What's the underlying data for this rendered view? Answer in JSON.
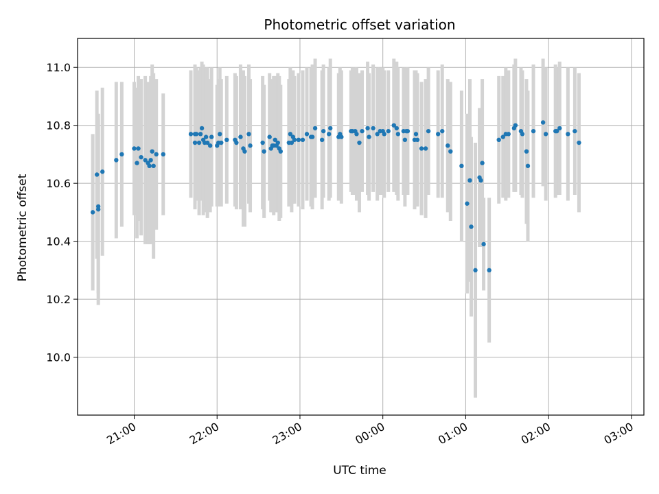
{
  "chart_data": {
    "type": "scatter",
    "title": "Photometric offset variation",
    "xlabel": "UTC time",
    "ylabel": "Photometric offset",
    "x_is_time": true,
    "xlim": [
      "20:19",
      "03:09"
    ],
    "ylim": [
      9.8,
      11.1
    ],
    "x_ticks": [
      "21:00",
      "22:00",
      "23:00",
      "00:00",
      "01:00",
      "02:00",
      "03:00"
    ],
    "y_ticks": [
      "10.0",
      "10.2",
      "10.4",
      "10.6",
      "10.8",
      "11.0"
    ],
    "grid": true,
    "marker_color": "#1f77b4",
    "errorbar_color": "#d3d3d3",
    "series": [
      {
        "x": [
          "20:30",
          "20:33",
          "20:34",
          "20:34",
          "20:37",
          "20:47",
          "20:51",
          "21:00",
          "21:02",
          "21:03",
          "21:05",
          "21:08",
          "21:10",
          "21:11",
          "21:12",
          "21:13",
          "21:14",
          "21:16",
          "21:21",
          "21:41",
          "21:44",
          "21:44",
          "21:45",
          "21:47",
          "21:48",
          "21:49",
          "21:50",
          "21:51",
          "21:52",
          "21:53",
          "21:55",
          "21:56",
          "22:00",
          "22:01",
          "22:02",
          "22:03",
          "22:07",
          "22:13",
          "22:14",
          "22:17",
          "22:19",
          "22:20",
          "22:23",
          "22:24",
          "22:33",
          "22:34",
          "22:38",
          "22:39",
          "22:40",
          "22:41",
          "22:42",
          "22:43",
          "22:44",
          "22:45",
          "22:46",
          "22:52",
          "22:53",
          "22:54",
          "22:55",
          "22:56",
          "22:59",
          "23:02",
          "23:05",
          "23:08",
          "23:09",
          "23:11",
          "23:16",
          "23:17",
          "23:21",
          "23:22",
          "23:28",
          "23:29",
          "23:30",
          "23:37",
          "23:38",
          "23:40",
          "23:41",
          "23:43",
          "23:45",
          "23:49",
          "23:50",
          "23:53",
          "23:56",
          "23:58",
          "00:00",
          "00:01",
          "00:04",
          "00:08",
          "00:10",
          "00:11",
          "00:15",
          "00:16",
          "00:17",
          "00:18",
          "00:23",
          "00:24",
          "00:25",
          "00:28",
          "00:31",
          "00:33",
          "00:40",
          "00:43",
          "00:47",
          "00:49",
          "00:57",
          "01:01",
          "01:03",
          "01:04",
          "01:07",
          "01:10",
          "01:11",
          "01:12",
          "01:13",
          "01:17",
          "01:24",
          "01:27",
          "01:29",
          "01:31",
          "01:35",
          "01:36",
          "01:40",
          "01:41",
          "01:44",
          "01:45",
          "01:49",
          "01:56",
          "01:58",
          "02:05",
          "02:06",
          "02:08",
          "02:14",
          "02:19",
          "02:22"
        ],
        "y": [
          10.5,
          10.63,
          10.52,
          10.51,
          10.64,
          10.68,
          10.7,
          10.72,
          10.67,
          10.72,
          10.69,
          10.68,
          10.67,
          10.66,
          10.68,
          10.71,
          10.66,
          10.7,
          10.7,
          10.77,
          10.74,
          10.77,
          10.77,
          10.74,
          10.77,
          10.79,
          10.75,
          10.74,
          10.76,
          10.74,
          10.73,
          10.76,
          10.73,
          10.74,
          10.77,
          10.74,
          10.75,
          10.75,
          10.74,
          10.76,
          10.72,
          10.71,
          10.77,
          10.73,
          10.74,
          10.71,
          10.76,
          10.72,
          10.73,
          10.73,
          10.75,
          10.73,
          10.74,
          10.72,
          10.71,
          10.74,
          10.77,
          10.74,
          10.76,
          10.75,
          10.75,
          10.75,
          10.77,
          10.76,
          10.76,
          10.79,
          10.75,
          10.78,
          10.77,
          10.79,
          10.76,
          10.77,
          10.76,
          10.78,
          10.78,
          10.78,
          10.77,
          10.74,
          10.78,
          10.79,
          10.76,
          10.79,
          10.77,
          10.78,
          10.78,
          10.77,
          10.78,
          10.8,
          10.79,
          10.77,
          10.78,
          10.75,
          10.78,
          10.78,
          10.75,
          10.77,
          10.75,
          10.72,
          10.72,
          10.78,
          10.77,
          10.78,
          10.73,
          10.71,
          10.66,
          10.53,
          10.61,
          10.45,
          10.3,
          10.62,
          10.61,
          10.67,
          10.39,
          10.3,
          10.75,
          10.76,
          10.77,
          10.77,
          10.79,
          10.8,
          10.78,
          10.77,
          10.71,
          10.66,
          10.78,
          10.81,
          10.77,
          10.78,
          10.78,
          10.79,
          10.77,
          10.78,
          10.74
        ],
        "yerr": [
          0.27,
          0.29,
          0.3,
          0.33,
          0.29,
          0.27,
          0.25,
          0.23,
          0.26,
          0.25,
          0.27,
          0.29,
          0.28,
          0.27,
          0.29,
          0.3,
          0.32,
          0.26,
          0.21,
          0.22,
          0.23,
          0.24,
          0.23,
          0.25,
          0.23,
          0.23,
          0.26,
          0.24,
          0.24,
          0.26,
          0.23,
          0.24,
          0.21,
          0.22,
          0.23,
          0.22,
          0.22,
          0.23,
          0.23,
          0.25,
          0.27,
          0.26,
          0.24,
          0.23,
          0.23,
          0.23,
          0.22,
          0.22,
          0.23,
          0.24,
          0.22,
          0.23,
          0.24,
          0.25,
          0.23,
          0.22,
          0.23,
          0.24,
          0.23,
          0.22,
          0.23,
          0.24,
          0.23,
          0.24,
          0.25,
          0.24,
          0.24,
          0.23,
          0.23,
          0.24,
          0.22,
          0.23,
          0.23,
          0.21,
          0.22,
          0.22,
          0.23,
          0.24,
          0.21,
          0.23,
          0.22,
          0.22,
          0.23,
          0.22,
          0.22,
          0.22,
          0.21,
          0.23,
          0.23,
          0.23,
          0.22,
          0.23,
          0.22,
          0.22,
          0.24,
          0.22,
          0.23,
          0.23,
          0.24,
          0.22,
          0.22,
          0.23,
          0.23,
          0.24,
          0.26,
          0.31,
          0.35,
          0.31,
          0.44,
          0.24,
          0.22,
          0.29,
          0.16,
          0.25,
          0.22,
          0.21,
          0.23,
          0.22,
          0.22,
          0.23,
          0.22,
          0.22,
          0.25,
          0.26,
          0.23,
          0.22,
          0.23,
          0.23,
          0.22,
          0.23,
          0.23,
          0.22,
          0.24
        ]
      }
    ]
  }
}
